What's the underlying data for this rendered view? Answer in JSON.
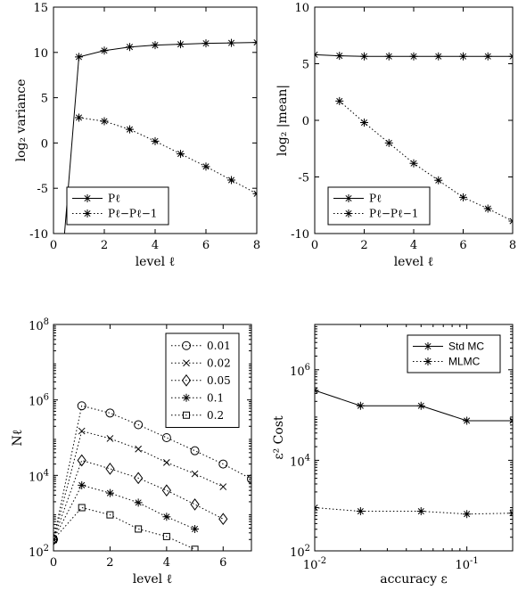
{
  "chart_data": [
    {
      "id": "var",
      "type": "line",
      "xlabel": "level ℓ",
      "ylabel": "log₂ variance",
      "xlim": [
        0,
        8
      ],
      "ylim": [
        -10,
        15
      ],
      "xticks": [
        0,
        2,
        4,
        6,
        8
      ],
      "yticks": [
        -10,
        -5,
        0,
        5,
        10,
        15
      ],
      "xtick_labels": [
        "0",
        "2",
        "4",
        "6",
        "8"
      ],
      "ytick_labels": [
        "-10",
        "-5",
        "0",
        "5",
        "10",
        "15"
      ],
      "legend_position": "lower-left",
      "series": [
        {
          "name": "Pℓ",
          "style": "solid",
          "marker": "star",
          "x": [
            0,
            1,
            2,
            3,
            4,
            5,
            6,
            7,
            8
          ],
          "y": [
            -25,
            9.5,
            10.2,
            10.6,
            10.8,
            10.9,
            11.0,
            11.05,
            11.1
          ]
        },
        {
          "name": "Pℓ−Pℓ−1",
          "style": "dotted",
          "marker": "star",
          "x": [
            1,
            2,
            3,
            4,
            5,
            6,
            7,
            8
          ],
          "y": [
            2.8,
            2.4,
            1.5,
            0.2,
            -1.2,
            -2.6,
            -4.1,
            -5.6
          ]
        }
      ]
    },
    {
      "id": "mean",
      "type": "line",
      "xlabel": "level ℓ",
      "ylabel": "log₂ |mean|",
      "xlim": [
        0,
        8
      ],
      "ylim": [
        -10,
        10
      ],
      "xticks": [
        0,
        2,
        4,
        6,
        8
      ],
      "yticks": [
        -10,
        -5,
        0,
        5,
        10
      ],
      "xtick_labels": [
        "0",
        "2",
        "4",
        "6",
        "8"
      ],
      "ytick_labels": [
        "-10",
        "-5",
        "0",
        "5",
        "10"
      ],
      "legend_position": "lower-left",
      "series": [
        {
          "name": "Pℓ",
          "style": "solid",
          "marker": "star",
          "x": [
            0,
            1,
            2,
            3,
            4,
            5,
            6,
            7,
            8
          ],
          "y": [
            5.8,
            5.7,
            5.65,
            5.65,
            5.65,
            5.65,
            5.65,
            5.65,
            5.65
          ]
        },
        {
          "name": "Pℓ−Pℓ−1",
          "style": "dotted",
          "marker": "star",
          "x": [
            1,
            2,
            3,
            4,
            5,
            6,
            7,
            8
          ],
          "y": [
            1.7,
            -0.2,
            -2.0,
            -3.8,
            -5.3,
            -6.8,
            -7.8,
            -8.9
          ]
        }
      ]
    },
    {
      "id": "nl",
      "type": "line",
      "xlabel": "level ℓ",
      "ylabel": "Nℓ",
      "xlim": [
        0,
        7
      ],
      "ylim_log10": [
        2,
        8
      ],
      "yscale": "log",
      "xticks": [
        0,
        2,
        4,
        6
      ],
      "xtick_labels": [
        "0",
        "2",
        "4",
        "6"
      ],
      "ytick_values": [
        100,
        10000,
        1000000,
        100000000
      ],
      "ytick_bases": [
        "10",
        "10",
        "10",
        "10"
      ],
      "ytick_exponents": [
        "2",
        "4",
        "6",
        "8"
      ],
      "legend_position": "top-right",
      "series": [
        {
          "name": "0.01",
          "style": "dotted",
          "marker": "circle",
          "x": [
            0,
            1,
            2,
            3,
            4,
            5,
            6,
            7
          ],
          "y": [
            200,
            700000,
            450000,
            220000,
            100000,
            45000,
            20000,
            8000
          ]
        },
        {
          "name": "0.02",
          "style": "dotted",
          "marker": "cross",
          "x": [
            0,
            1,
            2,
            3,
            4,
            5,
            6
          ],
          "y": [
            200,
            150000,
            95000,
            50000,
            22000,
            11000,
            5000
          ]
        },
        {
          "name": "0.05",
          "style": "dotted",
          "marker": "diamond",
          "x": [
            0,
            1,
            2,
            3,
            4,
            5,
            6
          ],
          "y": [
            200,
            25000,
            15000,
            8500,
            4000,
            1700,
            700
          ]
        },
        {
          "name": "0.1",
          "style": "dotted",
          "marker": "star",
          "x": [
            0,
            1,
            2,
            3,
            4,
            5
          ],
          "y": [
            200,
            5500,
            3400,
            1900,
            800,
            380
          ]
        },
        {
          "name": "0.2",
          "style": "dotted",
          "marker": "square",
          "x": [
            0,
            1,
            2,
            3,
            4,
            5
          ],
          "y": [
            200,
            1400,
            900,
            380,
            240,
            110
          ]
        }
      ]
    },
    {
      "id": "cost",
      "type": "line",
      "xlabel": "accuracy ε",
      "ylabel": "ε² Cost",
      "xscale": "log",
      "yscale": "log",
      "xlim_log10": [
        -2,
        -0.699
      ],
      "ylim_log10": [
        2,
        7
      ],
      "xtick_values": [
        0.01,
        0.1
      ],
      "xtick_bases": [
        "10",
        "10"
      ],
      "xtick_exponents": [
        "-2",
        "-1"
      ],
      "ytick_values": [
        100,
        10000,
        1000000
      ],
      "ytick_bases": [
        "10",
        "10",
        "10"
      ],
      "ytick_exponents": [
        "2",
        "4",
        "6"
      ],
      "legend_position": "top-right",
      "series": [
        {
          "name": "Std MC",
          "style": "solid",
          "marker": "star",
          "x": [
            0.01,
            0.02,
            0.05,
            0.1,
            0.2
          ],
          "y": [
            350000,
            160000,
            160000,
            75000,
            75000
          ]
        },
        {
          "name": "MLMC",
          "style": "dotted",
          "marker": "star",
          "x": [
            0.01,
            0.02,
            0.05,
            0.1,
            0.2
          ],
          "y": [
            900,
            750,
            750,
            650,
            680
          ]
        }
      ]
    }
  ]
}
